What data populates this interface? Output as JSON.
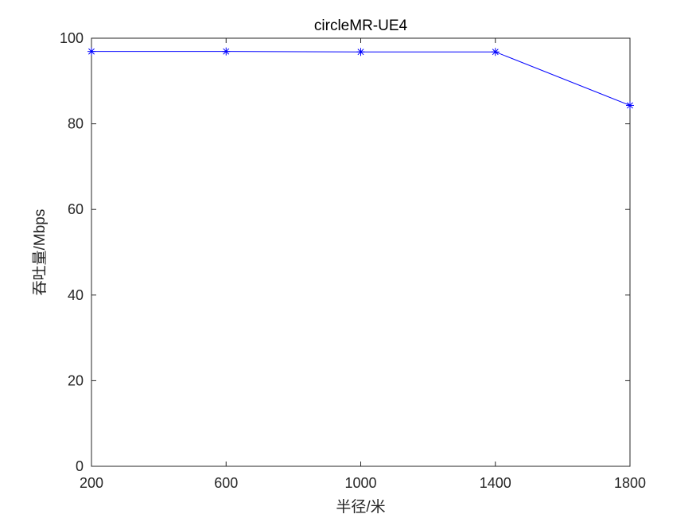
{
  "chart_data": {
    "type": "line",
    "title": "circleMR-UE4",
    "xlabel": "半径/米",
    "ylabel": "吞吐量/Mbps",
    "x": [
      200,
      600,
      1000,
      1400,
      1800
    ],
    "series": [
      {
        "values": [
          96.9,
          96.9,
          96.8,
          96.8,
          84.3
        ],
        "color": "#0000ff",
        "marker": "asterisk"
      }
    ],
    "xlim": [
      200,
      1800
    ],
    "ylim": [
      0,
      100
    ],
    "xticks": [
      200,
      600,
      1000,
      1400,
      1800
    ],
    "yticks": [
      0,
      20,
      40,
      60,
      80,
      100
    ],
    "grid": false,
    "box": true
  }
}
